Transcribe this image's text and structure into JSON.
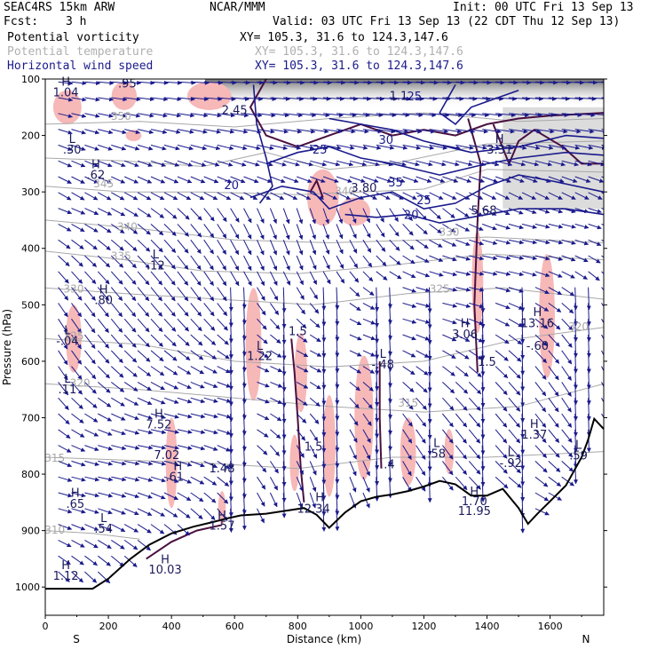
{
  "header": {
    "model": "SEAC4RS 15km ARW",
    "org": "NCAR/MMM",
    "init": "Init: 00 UTC Fri 13 Sep 13",
    "fcst_label": "Fcst:",
    "fcst_value": "3 h",
    "valid": "Valid: 03 UTC Fri 13 Sep 13 (22 CDT Thu 12 Sep 13)",
    "fields": [
      {
        "name": "Potential vorticity",
        "xsec": "XY= 105.3, 31.6 to 124.3,147.6",
        "color": "#000000"
      },
      {
        "name": "Potential temperature",
        "xsec": "XY= 105.3, 31.6 to 124.3,147.6",
        "color": "#b0b0b0"
      },
      {
        "name": "Horizontal wind speed",
        "xsec": "XY= 105.3, 31.6 to 124.3,147.6",
        "color": "#1a1a8c"
      }
    ]
  },
  "chart_data": {
    "type": "cross-section",
    "xlabel": "Distance (km)",
    "ylabel": "Pressure (hPa)",
    "xlim": [
      0,
      1770
    ],
    "ylim": [
      1050,
      100
    ],
    "x_ticks": [
      0,
      200,
      400,
      600,
      800,
      1000,
      1200,
      1400,
      1600
    ],
    "y_ticks": [
      100,
      200,
      300,
      400,
      500,
      600,
      700,
      800,
      900,
      1000
    ],
    "left_end_label": "S",
    "right_end_label": "N",
    "colors": {
      "wind": "#1a1a8c",
      "theta": "#a8a8a8",
      "pv": "#4a1040",
      "pv_fill": "#f7b8b8",
      "terrain": "#000000"
    },
    "terrain": [
      [
        0,
        1003
      ],
      [
        150,
        1003
      ],
      [
        200,
        985
      ],
      [
        270,
        950
      ],
      [
        330,
        925
      ],
      [
        400,
        905
      ],
      [
        470,
        893
      ],
      [
        530,
        885
      ],
      [
        580,
        878
      ],
      [
        620,
        873
      ],
      [
        700,
        870
      ],
      [
        760,
        865
      ],
      [
        820,
        860
      ],
      [
        860,
        872
      ],
      [
        900,
        895
      ],
      [
        950,
        868
      ],
      [
        1000,
        848
      ],
      [
        1050,
        840
      ],
      [
        1100,
        836
      ],
      [
        1150,
        830
      ],
      [
        1200,
        822
      ],
      [
        1250,
        812
      ],
      [
        1300,
        818
      ],
      [
        1350,
        838
      ],
      [
        1400,
        838
      ],
      [
        1450,
        826
      ],
      [
        1500,
        860
      ],
      [
        1530,
        888
      ],
      [
        1560,
        870
      ],
      [
        1600,
        848
      ],
      [
        1650,
        820
      ],
      [
        1700,
        770
      ],
      [
        1720,
        740
      ],
      [
        1740,
        702
      ],
      [
        1770,
        720
      ]
    ],
    "theta_labels": [
      {
        "x": 950,
        "p": 305,
        "t": "340"
      },
      {
        "x": 1280,
        "p": 378,
        "t": "330"
      },
      {
        "x": 240,
        "p": 172,
        "t": "350"
      },
      {
        "x": 185,
        "p": 292,
        "t": "345"
      },
      {
        "x": 260,
        "p": 368,
        "t": "340"
      },
      {
        "x": 240,
        "p": 420,
        "t": "335"
      },
      {
        "x": 90,
        "p": 478,
        "t": "330"
      },
      {
        "x": 90,
        "p": 562,
        "t": "325"
      },
      {
        "x": 1250,
        "p": 478,
        "t": "325"
      },
      {
        "x": 110,
        "p": 645,
        "t": "320"
      },
      {
        "x": 1150,
        "p": 680,
        "t": "315"
      },
      {
        "x": 30,
        "p": 778,
        "t": "315"
      },
      {
        "x": 30,
        "p": 905,
        "t": "310"
      },
      {
        "x": 1690,
        "p": 545,
        "t": "320"
      }
    ],
    "wind_labels": [
      {
        "x": 590,
        "p": 295,
        "t": "20"
      },
      {
        "x": 870,
        "p": 232,
        "t": "25"
      },
      {
        "x": 1080,
        "p": 215,
        "t": "30"
      },
      {
        "x": 1110,
        "p": 290,
        "t": "35"
      },
      {
        "x": 1200,
        "p": 322,
        "t": "25"
      },
      {
        "x": 1160,
        "p": 348,
        "t": "20"
      },
      {
        "x": 1170,
        "p": 138,
        "t": "25"
      }
    ],
    "hl_labels": [
      {
        "x": 65,
        "p": 112,
        "t": "H"
      },
      {
        "x": 65,
        "p": 131,
        "t": "1.04"
      },
      {
        "x": 260,
        "p": 115,
        "t": ".95"
      },
      {
        "x": 85,
        "p": 213,
        "t": "L"
      },
      {
        "x": 85,
        "p": 232,
        "t": ".30"
      },
      {
        "x": 160,
        "p": 258,
        "t": "H"
      },
      {
        "x": 160,
        "p": 277,
        "t": ".62"
      },
      {
        "x": 600,
        "p": 162,
        "t": "2.45"
      },
      {
        "x": 1120,
        "p": 137,
        "t": "1.1"
      },
      {
        "x": 1440,
        "p": 213,
        "t": "H"
      },
      {
        "x": 1440,
        "p": 232,
        "t": "3.31"
      },
      {
        "x": 1010,
        "p": 300,
        "t": "3.80"
      },
      {
        "x": 1390,
        "p": 340,
        "t": "5.68"
      },
      {
        "x": 350,
        "p": 418,
        "t": "L"
      },
      {
        "x": 350,
        "p": 437,
        "t": ".12"
      },
      {
        "x": 185,
        "p": 480,
        "t": "H"
      },
      {
        "x": 185,
        "p": 499,
        "t": ".80"
      },
      {
        "x": 70,
        "p": 552,
        "t": "L"
      },
      {
        "x": 70,
        "p": 571,
        "t": "-.04"
      },
      {
        "x": 1330,
        "p": 540,
        "t": "H"
      },
      {
        "x": 1330,
        "p": 559,
        "t": "3.06"
      },
      {
        "x": 1560,
        "p": 520,
        "t": "H"
      },
      {
        "x": 1560,
        "p": 540,
        "t": "13.16"
      },
      {
        "x": 1560,
        "p": 580,
        "t": "-.60"
      },
      {
        "x": 680,
        "p": 580,
        "t": "L"
      },
      {
        "x": 680,
        "p": 598,
        "t": "1.22"
      },
      {
        "x": 800,
        "p": 554,
        "t": "1.5"
      },
      {
        "x": 1400,
        "p": 608,
        "t": "1.5"
      },
      {
        "x": 1070,
        "p": 594,
        "t": "L"
      },
      {
        "x": 1070,
        "p": 613,
        "t": "-.48"
      },
      {
        "x": 70,
        "p": 638,
        "t": "L"
      },
      {
        "x": 70,
        "p": 657,
        "t": ".11"
      },
      {
        "x": 360,
        "p": 700,
        "t": "H"
      },
      {
        "x": 360,
        "p": 719,
        "t": "7.52"
      },
      {
        "x": 1550,
        "p": 718,
        "t": "H"
      },
      {
        "x": 1550,
        "p": 737,
        "t": "1.37"
      },
      {
        "x": 850,
        "p": 758,
        "t": "1.5"
      },
      {
        "x": 1240,
        "p": 752,
        "t": "L"
      },
      {
        "x": 1240,
        "p": 771,
        "t": ".58"
      },
      {
        "x": 1690,
        "p": 755,
        "t": "L"
      },
      {
        "x": 1690,
        "p": 774,
        "t": ".59"
      },
      {
        "x": 1475,
        "p": 768,
        "t": "L"
      },
      {
        "x": 1475,
        "p": 787,
        "t": "-.92"
      },
      {
        "x": 385,
        "p": 773,
        "t": "7.02"
      },
      {
        "x": 420,
        "p": 793,
        "t": "H"
      },
      {
        "x": 410,
        "p": 812,
        "t": ".61"
      },
      {
        "x": 560,
        "p": 797,
        "t": "1.48"
      },
      {
        "x": 1090,
        "p": 790,
        "t": ".4"
      },
      {
        "x": 95,
        "p": 840,
        "t": "H"
      },
      {
        "x": 95,
        "p": 860,
        "t": ".65"
      },
      {
        "x": 1360,
        "p": 838,
        "t": "H"
      },
      {
        "x": 1360,
        "p": 855,
        "t": "1.70"
      },
      {
        "x": 1360,
        "p": 872,
        "t": "11.95"
      },
      {
        "x": 870,
        "p": 848,
        "t": "H"
      },
      {
        "x": 850,
        "p": 868,
        "t": "12.34"
      },
      {
        "x": 185,
        "p": 885,
        "t": "L"
      },
      {
        "x": 185,
        "p": 904,
        "t": ".54"
      },
      {
        "x": 560,
        "p": 880,
        "t": "H"
      },
      {
        "x": 560,
        "p": 898,
        "t": "1.57"
      },
      {
        "x": 380,
        "p": 958,
        "t": "H"
      },
      {
        "x": 380,
        "p": 976,
        "t": "10.03"
      },
      {
        "x": 65,
        "p": 968,
        "t": "H"
      },
      {
        "x": 65,
        "p": 987,
        "t": "1.12"
      }
    ]
  }
}
